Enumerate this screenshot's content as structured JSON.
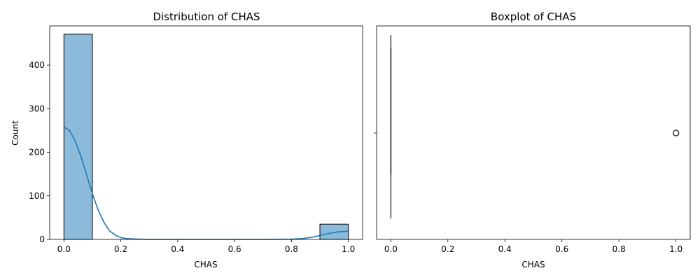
{
  "chart_data": [
    {
      "type": "bar",
      "title": "Distribution of CHAS",
      "xlabel": "CHAS",
      "ylabel": "Count",
      "xlim": [
        -0.05,
        1.05
      ],
      "ylim": [
        0,
        490
      ],
      "xticks": [
        0.0,
        0.2,
        0.4,
        0.6,
        0.8,
        1.0
      ],
      "xtick_labels": [
        "0.0",
        "0.2",
        "0.4",
        "0.6",
        "0.8",
        "1.0"
      ],
      "yticks": [
        0,
        100,
        200,
        300,
        400
      ],
      "ytick_labels": [
        "0",
        "100",
        "200",
        "300",
        "400"
      ],
      "bars": [
        {
          "x0": 0.0,
          "x1": 0.1,
          "count": 471
        },
        {
          "x0": 0.9,
          "x1": 1.0,
          "count": 35
        }
      ],
      "kde": {
        "x": [
          0.0,
          0.02,
          0.04,
          0.06,
          0.08,
          0.1,
          0.12,
          0.14,
          0.16,
          0.18,
          0.2,
          0.22,
          0.25,
          0.3,
          0.4,
          0.5,
          0.6,
          0.7,
          0.8,
          0.84,
          0.88,
          0.92,
          0.96,
          1.0
        ],
        "y": [
          258,
          250,
          225,
          190,
          148,
          105,
          68,
          40,
          20,
          10,
          4,
          2,
          1,
          0,
          0,
          0,
          0,
          0,
          0.5,
          2,
          6,
          12,
          17,
          19
        ]
      },
      "bar_color": "#8bbadb",
      "line_color": "#1f77b4",
      "grid": false
    },
    {
      "type": "boxplot",
      "title": "Boxplot of CHAS",
      "xlabel": "CHAS",
      "xlim": [
        -0.05,
        1.05
      ],
      "xticks": [
        0.0,
        0.2,
        0.4,
        0.6,
        0.8,
        1.0
      ],
      "xtick_labels": [
        "0.0",
        "0.2",
        "0.4",
        "0.6",
        "0.8",
        "1.0"
      ],
      "q1": 0,
      "median": 0,
      "q3": 0,
      "whisker_low": 0,
      "whisker_high": 0,
      "outliers": [
        1.0
      ],
      "grid": false
    }
  ]
}
